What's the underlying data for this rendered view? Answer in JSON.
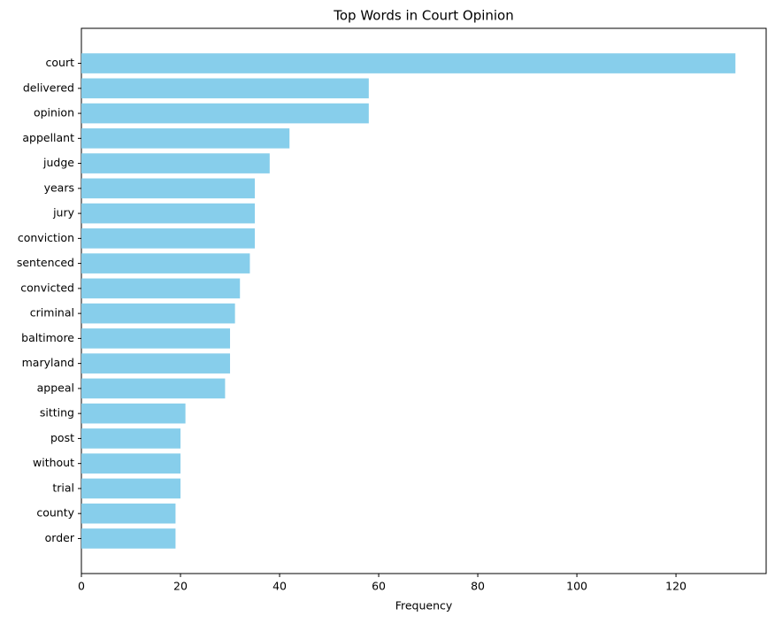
{
  "chart_data": {
    "type": "bar",
    "orientation": "horizontal",
    "title": "Top Words in Court Opinion",
    "x_label": "Frequency",
    "categories": [
      "court",
      "delivered",
      "opinion",
      "appellant",
      "judge",
      "years",
      "jury",
      "conviction",
      "sentenced",
      "convicted",
      "criminal",
      "baltimore",
      "maryland",
      "appeal",
      "sitting",
      "post",
      "without",
      "trial",
      "county",
      "order"
    ],
    "values": [
      132,
      58,
      58,
      42,
      38,
      35,
      35,
      35,
      34,
      32,
      31,
      30,
      30,
      29,
      21,
      20,
      20,
      20,
      19,
      19
    ],
    "color": "#87ceeb",
    "xlim": [
      0,
      138.2
    ],
    "xticks": [
      0,
      20,
      40,
      60,
      80,
      100,
      120
    ],
    "grid": false
  }
}
